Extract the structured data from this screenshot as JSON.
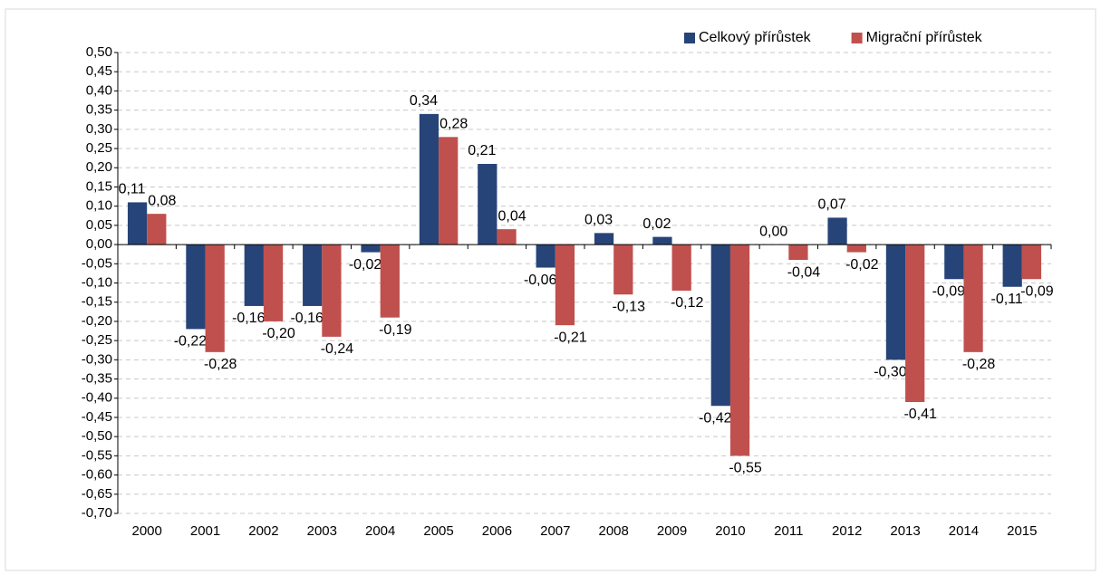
{
  "chart_data": {
    "type": "bar",
    "categories": [
      "2000",
      "2001",
      "2002",
      "2003",
      "2004",
      "2005",
      "2006",
      "2007",
      "2008",
      "2009",
      "2010",
      "2011",
      "2012",
      "2013",
      "2014",
      "2015"
    ],
    "series": [
      {
        "name": "Celkový přírůstek",
        "color": "#264478",
        "values": [
          0.11,
          -0.22,
          -0.16,
          -0.16,
          -0.02,
          0.34,
          0.21,
          -0.06,
          0.03,
          0.02,
          -0.42,
          0.0,
          0.07,
          -0.3,
          -0.09,
          -0.11
        ],
        "value_labels": [
          "0,11",
          "-0,22",
          "-0,16",
          "-0,16",
          "-0,02",
          "0,34",
          "0,21",
          "-0,06",
          "0,03",
          "0,02",
          "-0,42",
          "0,00",
          "0,07",
          "-0,30",
          "-0,09",
          "-0,11"
        ]
      },
      {
        "name": "Migrační přírůstek",
        "color": "#c0504d",
        "values": [
          0.08,
          -0.28,
          -0.2,
          -0.24,
          -0.19,
          0.28,
          0.04,
          -0.21,
          -0.13,
          -0.12,
          -0.55,
          -0.04,
          -0.02,
          -0.41,
          -0.28,
          -0.09
        ],
        "value_labels": [
          "0,08",
          "-0,28",
          "-0,20",
          "-0,24",
          "-0,19",
          "0,28",
          "0,04",
          "-0,21",
          "-0,13",
          "-0,12",
          "-0,55",
          "-0,04",
          "-0,02",
          "-0,41",
          "-0,28",
          "-0,09"
        ]
      }
    ],
    "ylim": [
      -0.7,
      0.5
    ],
    "yticks": [
      {
        "value": 0.5,
        "label": "0,50"
      },
      {
        "value": 0.45,
        "label": "0,45"
      },
      {
        "value": 0.4,
        "label": "0,40"
      },
      {
        "value": 0.35,
        "label": "0,35"
      },
      {
        "value": 0.3,
        "label": "0,30"
      },
      {
        "value": 0.25,
        "label": "0,25"
      },
      {
        "value": 0.2,
        "label": "0,20"
      },
      {
        "value": 0.15,
        "label": "0,15"
      },
      {
        "value": 0.1,
        "label": "0,10"
      },
      {
        "value": 0.05,
        "label": "0,05"
      },
      {
        "value": 0,
        "label": "0,00"
      },
      {
        "value": -0.05,
        "label": "-0,05"
      },
      {
        "value": -0.1,
        "label": "-0,10"
      },
      {
        "value": -0.15,
        "label": "-0,15"
      },
      {
        "value": -0.2,
        "label": "-0,20"
      },
      {
        "value": -0.25,
        "label": "-0,25"
      },
      {
        "value": -0.3,
        "label": "-0,30"
      },
      {
        "value": -0.35,
        "label": "-0,35"
      },
      {
        "value": -0.4,
        "label": "-0,40"
      },
      {
        "value": -0.45,
        "label": "-0,45"
      },
      {
        "value": -0.5,
        "label": "-0,50"
      },
      {
        "value": -0.55,
        "label": "-0,55"
      },
      {
        "value": -0.6,
        "label": "-0,60"
      },
      {
        "value": -0.65,
        "label": "-0,65"
      },
      {
        "value": -0.7,
        "label": "-0,70"
      }
    ],
    "grid": true,
    "legend": "top-right"
  }
}
